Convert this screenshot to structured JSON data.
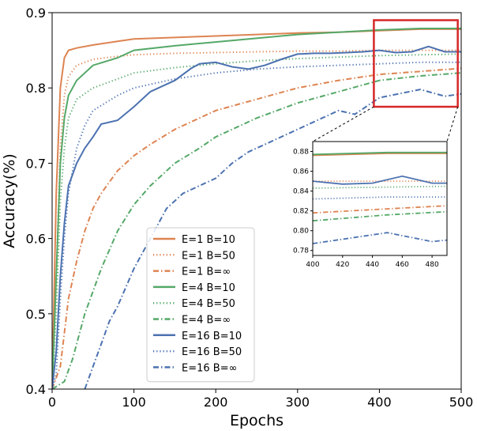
{
  "chart_data": [
    {
      "type": "line",
      "title": "",
      "xlabel": "Epochs",
      "ylabel": "Accuracy(%)",
      "xlim": [
        0,
        500
      ],
      "ylim": [
        0.4,
        0.9
      ],
      "xticks": [
        0,
        100,
        200,
        300,
        400,
        500
      ],
      "yticks": [
        0.4,
        0.5,
        0.6,
        0.7,
        0.8,
        0.9
      ],
      "grid": false,
      "legend_position": "lower-center",
      "colors": {
        "orange": "#dd8452",
        "green": "#55a868",
        "blue": "#4c72b0",
        "highlight": "#d62728"
      },
      "series": [
        {
          "name": "E=1 B=10",
          "color": "#dd8452",
          "style": "solid",
          "points": [
            [
              0,
              0.4
            ],
            [
              5,
              0.66
            ],
            [
              10,
              0.8
            ],
            [
              15,
              0.84
            ],
            [
              20,
              0.85
            ],
            [
              30,
              0.853
            ],
            [
              50,
              0.857
            ],
            [
              80,
              0.862
            ],
            [
              100,
              0.865
            ],
            [
              150,
              0.867
            ],
            [
              200,
              0.869
            ],
            [
              250,
              0.871
            ],
            [
              300,
              0.873
            ],
            [
              350,
              0.874
            ],
            [
              400,
              0.876
            ],
            [
              450,
              0.878
            ],
            [
              500,
              0.878
            ]
          ]
        },
        {
          "name": "E=1 B=50",
          "color": "#dd8452",
          "style": "dotted",
          "points": [
            [
              0,
              0.4
            ],
            [
              5,
              0.55
            ],
            [
              10,
              0.72
            ],
            [
              15,
              0.79
            ],
            [
              20,
              0.815
            ],
            [
              30,
              0.83
            ],
            [
              50,
              0.838
            ],
            [
              80,
              0.842
            ],
            [
              100,
              0.844
            ],
            [
              150,
              0.846
            ],
            [
              200,
              0.847
            ],
            [
              250,
              0.848
            ],
            [
              300,
              0.849
            ],
            [
              350,
              0.849
            ],
            [
              400,
              0.85
            ],
            [
              450,
              0.85
            ],
            [
              500,
              0.85
            ]
          ]
        },
        {
          "name": "E=1 B=∞",
          "color": "#dd8452",
          "style": "dashdot",
          "points": [
            [
              0,
              0.4
            ],
            [
              10,
              0.43
            ],
            [
              20,
              0.52
            ],
            [
              30,
              0.57
            ],
            [
              40,
              0.61
            ],
            [
              50,
              0.64
            ],
            [
              60,
              0.66
            ],
            [
              70,
              0.675
            ],
            [
              80,
              0.69
            ],
            [
              100,
              0.71
            ],
            [
              120,
              0.725
            ],
            [
              150,
              0.745
            ],
            [
              180,
              0.76
            ],
            [
              200,
              0.77
            ],
            [
              250,
              0.785
            ],
            [
              300,
              0.8
            ],
            [
              350,
              0.81
            ],
            [
              400,
              0.818
            ],
            [
              450,
              0.822
            ],
            [
              500,
              0.826
            ]
          ]
        },
        {
          "name": "E=4 B=10",
          "color": "#55a868",
          "style": "solid",
          "points": [
            [
              0,
              0.4
            ],
            [
              5,
              0.55
            ],
            [
              10,
              0.7
            ],
            [
              15,
              0.76
            ],
            [
              20,
              0.79
            ],
            [
              30,
              0.81
            ],
            [
              50,
              0.83
            ],
            [
              80,
              0.84
            ],
            [
              100,
              0.85
            ],
            [
              150,
              0.856
            ],
            [
              200,
              0.861
            ],
            [
              250,
              0.866
            ],
            [
              300,
              0.871
            ],
            [
              350,
              0.874
            ],
            [
              400,
              0.877
            ],
            [
              450,
              0.879
            ],
            [
              500,
              0.879
            ]
          ]
        },
        {
          "name": "E=4 B=50",
          "color": "#55a868",
          "style": "dotted",
          "points": [
            [
              0,
              0.4
            ],
            [
              5,
              0.5
            ],
            [
              10,
              0.65
            ],
            [
              15,
              0.72
            ],
            [
              20,
              0.76
            ],
            [
              30,
              0.785
            ],
            [
              50,
              0.8
            ],
            [
              80,
              0.812
            ],
            [
              100,
              0.82
            ],
            [
              150,
              0.827
            ],
            [
              200,
              0.832
            ],
            [
              250,
              0.836
            ],
            [
              300,
              0.839
            ],
            [
              350,
              0.841
            ],
            [
              400,
              0.843
            ],
            [
              450,
              0.844
            ],
            [
              500,
              0.845
            ]
          ]
        },
        {
          "name": "E=4 B=∞",
          "color": "#55a868",
          "style": "dashdot",
          "points": [
            [
              0,
              0.4
            ],
            [
              15,
              0.41
            ],
            [
              25,
              0.44
            ],
            [
              40,
              0.5
            ],
            [
              60,
              0.56
            ],
            [
              80,
              0.61
            ],
            [
              100,
              0.645
            ],
            [
              120,
              0.67
            ],
            [
              150,
              0.7
            ],
            [
              180,
              0.72
            ],
            [
              200,
              0.735
            ],
            [
              250,
              0.76
            ],
            [
              300,
              0.78
            ],
            [
              350,
              0.795
            ],
            [
              400,
              0.81
            ],
            [
              450,
              0.816
            ],
            [
              500,
              0.82
            ]
          ]
        },
        {
          "name": "E=16 B=10",
          "color": "#4c72b0",
          "style": "solid",
          "points": [
            [
              0,
              0.4
            ],
            [
              5,
              0.45
            ],
            [
              10,
              0.55
            ],
            [
              15,
              0.62
            ],
            [
              20,
              0.67
            ],
            [
              30,
              0.7
            ],
            [
              40,
              0.72
            ],
            [
              50,
              0.735
            ],
            [
              60,
              0.752
            ],
            [
              80,
              0.757
            ],
            [
              100,
              0.775
            ],
            [
              120,
              0.795
            ],
            [
              150,
              0.81
            ],
            [
              170,
              0.826
            ],
            [
              180,
              0.832
            ],
            [
              200,
              0.834
            ],
            [
              220,
              0.828
            ],
            [
              240,
              0.825
            ],
            [
              260,
              0.83
            ],
            [
              280,
              0.838
            ],
            [
              300,
              0.845
            ],
            [
              320,
              0.846
            ],
            [
              340,
              0.846
            ],
            [
              360,
              0.847
            ],
            [
              380,
              0.848
            ],
            [
              400,
              0.85
            ],
            [
              420,
              0.847
            ],
            [
              440,
              0.848
            ],
            [
              460,
              0.855
            ],
            [
              480,
              0.848
            ],
            [
              500,
              0.848
            ]
          ]
        },
        {
          "name": "E=16 B=50",
          "color": "#4c72b0",
          "style": "dotted",
          "points": [
            [
              0,
              0.4
            ],
            [
              5,
              0.42
            ],
            [
              10,
              0.52
            ],
            [
              15,
              0.6
            ],
            [
              20,
              0.66
            ],
            [
              30,
              0.72
            ],
            [
              40,
              0.75
            ],
            [
              50,
              0.77
            ],
            [
              80,
              0.79
            ],
            [
              100,
              0.8
            ],
            [
              150,
              0.812
            ],
            [
              200,
              0.82
            ],
            [
              250,
              0.825
            ],
            [
              300,
              0.828
            ],
            [
              350,
              0.83
            ],
            [
              400,
              0.832
            ],
            [
              450,
              0.834
            ],
            [
              500,
              0.834
            ]
          ]
        },
        {
          "name": "E=16 B=∞",
          "color": "#4c72b0",
          "style": "dashdot",
          "points": [
            [
              40,
              0.4
            ],
            [
              50,
              0.43
            ],
            [
              60,
              0.46
            ],
            [
              70,
              0.49
            ],
            [
              80,
              0.51
            ],
            [
              100,
              0.56
            ],
            [
              120,
              0.6
            ],
            [
              140,
              0.64
            ],
            [
              160,
              0.66
            ],
            [
              200,
              0.68
            ],
            [
              220,
              0.7
            ],
            [
              240,
              0.715
            ],
            [
              260,
              0.725
            ],
            [
              300,
              0.745
            ],
            [
              330,
              0.76
            ],
            [
              350,
              0.77
            ],
            [
              370,
              0.765
            ],
            [
              400,
              0.787
            ],
            [
              450,
              0.798
            ],
            [
              480,
              0.789
            ],
            [
              500,
              0.792
            ]
          ]
        }
      ]
    },
    {
      "type": "line",
      "title": "",
      "xlabel": "",
      "ylabel": "",
      "xlim": [
        400,
        490
      ],
      "ylim": [
        0.775,
        0.89
      ],
      "xticks": [
        400,
        420,
        440,
        460,
        480
      ],
      "yticks": [
        0.78,
        0.8,
        0.82,
        0.84,
        0.86,
        0.88
      ],
      "series_ref": "main"
    }
  ]
}
